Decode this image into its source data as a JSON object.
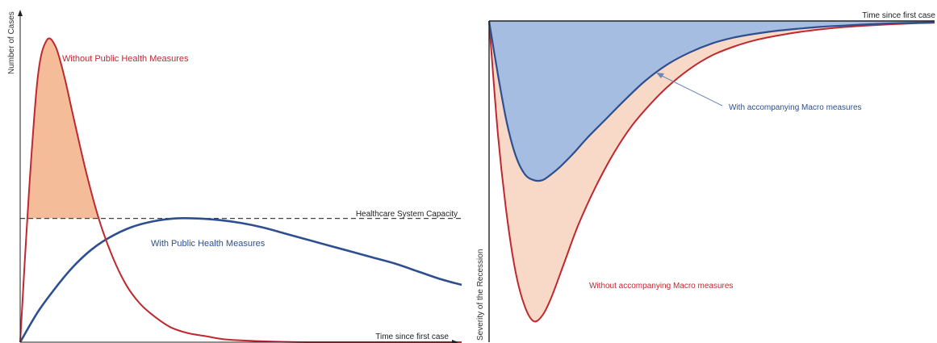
{
  "chart_data": [
    {
      "type": "line",
      "title": "",
      "xlabel": "Time since first case",
      "ylabel": "Number of Cases",
      "xlim": [
        0,
        100
      ],
      "ylim": [
        0,
        100
      ],
      "grid": false,
      "capacity": {
        "label": "Healthcare System Capacity",
        "value": 41
      },
      "excess_area_color": "#f4bc98",
      "series": [
        {
          "name": "Without Public Health Measures",
          "color": "#c0282f",
          "x": [
            0,
            2,
            4,
            6,
            8,
            10,
            12,
            15,
            18,
            21,
            24,
            27,
            30,
            34,
            38,
            42,
            46,
            50,
            55,
            60,
            65,
            70,
            75,
            80,
            85,
            90,
            95,
            100
          ],
          "y": [
            0,
            50,
            88,
            100,
            98,
            88,
            75,
            56,
            40,
            28,
            19,
            13,
            9,
            5,
            3,
            2,
            1,
            0.6,
            0.3,
            0.1,
            0,
            0,
            0,
            0,
            0,
            0,
            0,
            0
          ]
        },
        {
          "name": "With Public Health Measures",
          "color": "#2e4f8f",
          "x": [
            0,
            4,
            8,
            12,
            16,
            20,
            25,
            30,
            35,
            40,
            45,
            50,
            55,
            60,
            65,
            70,
            75,
            80,
            85,
            90,
            95,
            100
          ],
          "y": [
            0,
            10,
            18,
            25,
            30.5,
            34.5,
            38,
            40,
            41,
            41,
            40.5,
            39.5,
            38,
            36,
            34,
            32,
            30,
            28,
            26,
            23.5,
            21,
            19
          ]
        }
      ]
    },
    {
      "type": "area",
      "title": "",
      "xlabel": "Time since first case",
      "ylabel": "Severity of the Recession",
      "xlim": [
        0,
        100
      ],
      "ylim": [
        0,
        100
      ],
      "grid": false,
      "series": [
        {
          "name": "Without accompanying Macro measures",
          "color": "#c0282f",
          "fill": "#f8d9c8",
          "x": [
            0,
            2,
            4,
            6,
            8,
            10,
            12,
            14,
            17,
            20,
            24,
            28,
            32,
            36,
            40,
            45,
            50,
            55,
            60,
            65,
            70,
            75,
            80,
            85,
            90,
            95,
            100
          ],
          "y": [
            0,
            38,
            65,
            84,
            95,
            100,
            98,
            92,
            80,
            68,
            55,
            44,
            35,
            28,
            22,
            16,
            11.5,
            8.5,
            6.3,
            4.8,
            3.6,
            2.7,
            2.0,
            1.5,
            1.1,
            0.8,
            0.6
          ]
        },
        {
          "name": "With accompanying Macro measures",
          "color": "#2e4f8f",
          "fill": "#a4bde0",
          "x": [
            0,
            2,
            4,
            6,
            8,
            10,
            12,
            14,
            16,
            19,
            22,
            26,
            30,
            35,
            40,
            45,
            50,
            55,
            60,
            65,
            70,
            75,
            80,
            85,
            90,
            95,
            100
          ],
          "y": [
            0,
            18,
            34,
            45,
            51,
            53,
            53,
            51,
            48.5,
            44,
            39,
            33,
            27,
            20,
            14.5,
            10.5,
            7.5,
            5.5,
            4.2,
            3.2,
            2.5,
            1.9,
            1.5,
            1.1,
            0.8,
            0.6,
            0.4
          ]
        }
      ]
    }
  ]
}
